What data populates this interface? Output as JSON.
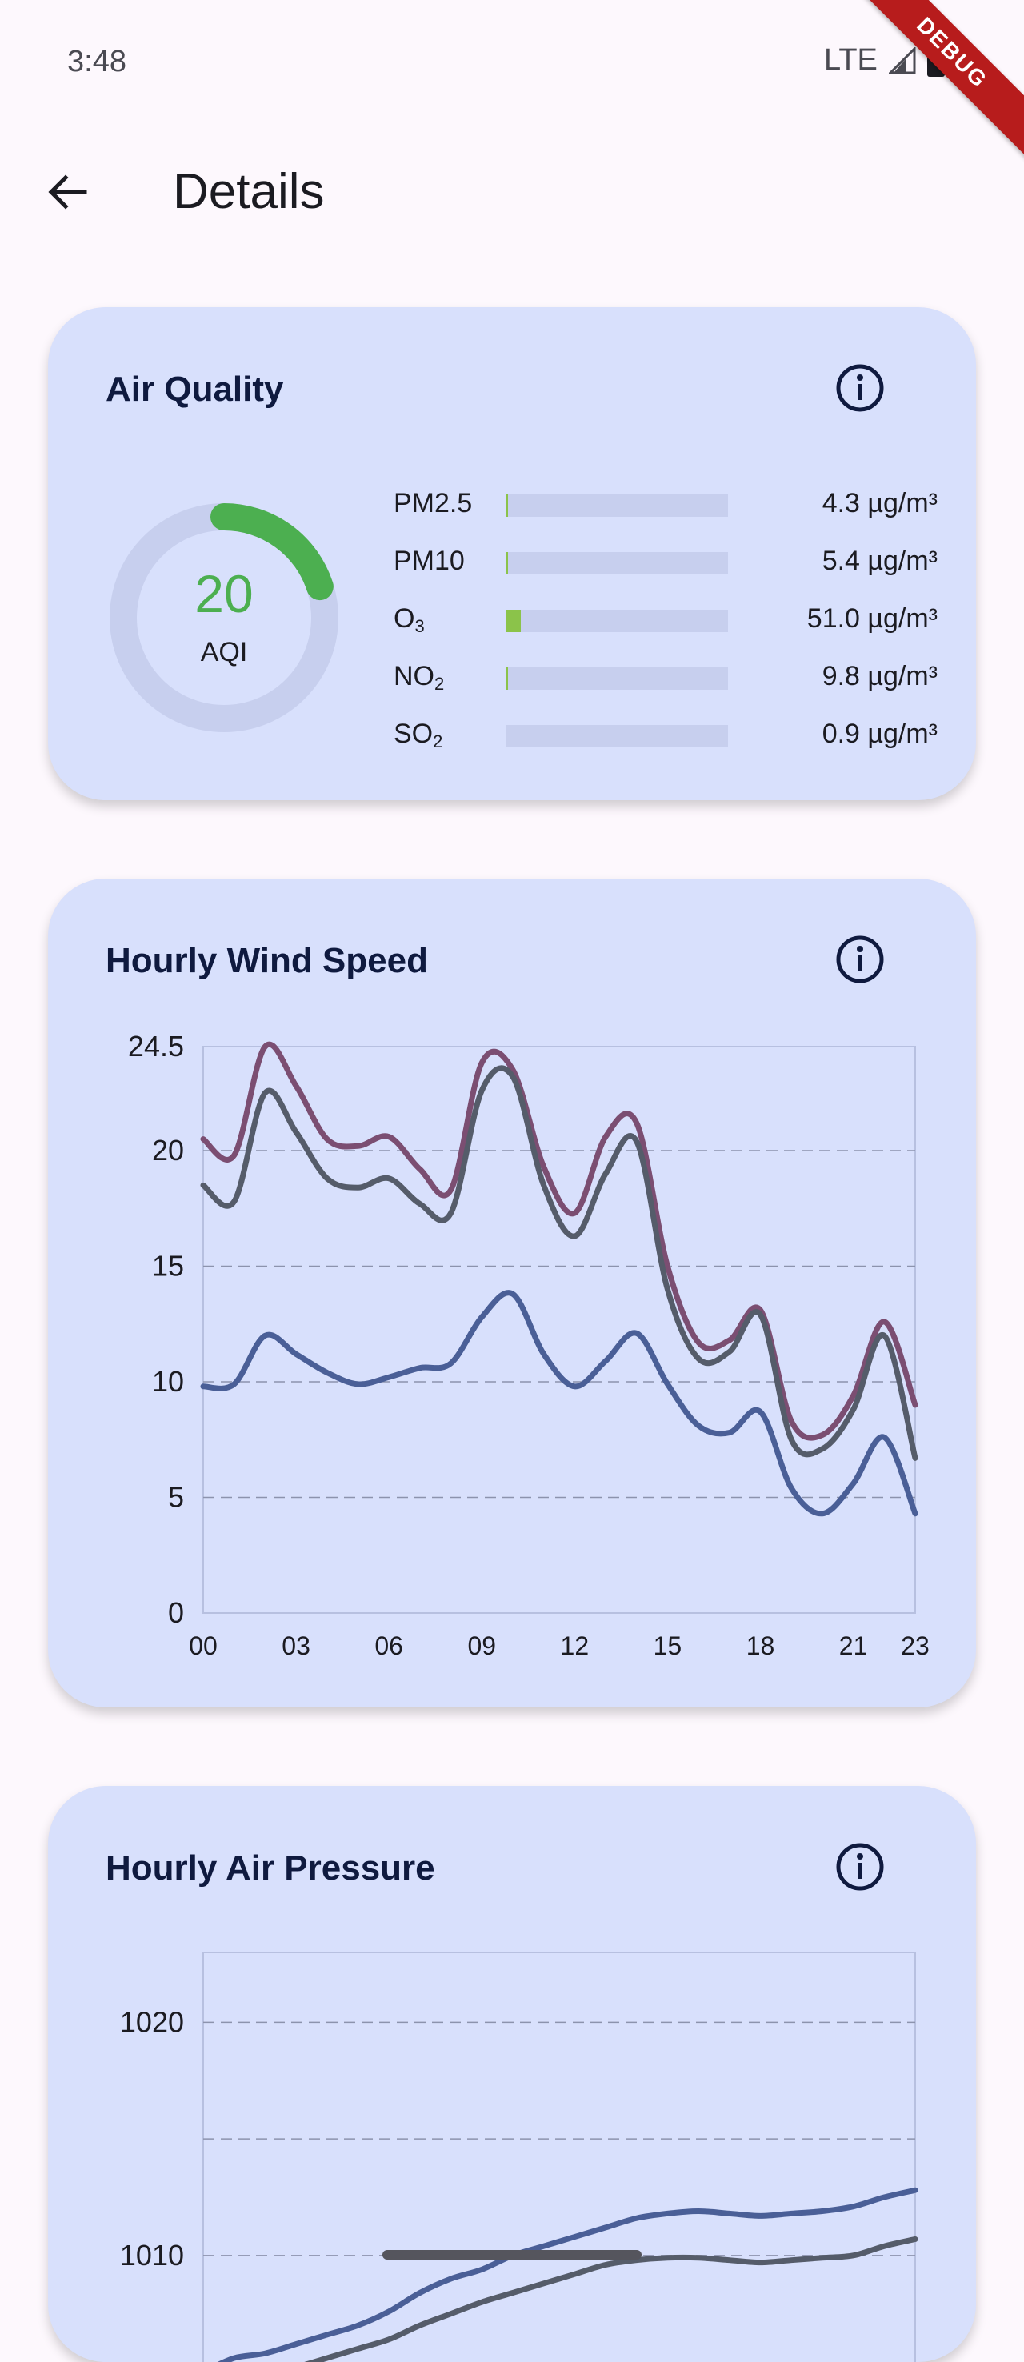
{
  "status_bar": {
    "time": "3:48",
    "network": "LTE",
    "debug_label": "DEBUG"
  },
  "app_bar": {
    "title": "Details",
    "back_icon": "arrow-left-icon"
  },
  "air_quality": {
    "title": "Air Quality",
    "info_icon": "info-icon",
    "aqi_value": "20",
    "aqi_label": "AQI",
    "aqi_fraction": 0.2,
    "gauge_color": "#4caf50",
    "pollutants": [
      {
        "name": "PM2.5",
        "sub": "",
        "value": "4.3 µg/m³",
        "fraction": 0.005
      },
      {
        "name": "PM10",
        "sub": "",
        "value": "5.4 µg/m³",
        "fraction": 0.005
      },
      {
        "name": "O",
        "sub": "3",
        "value": "51.0 µg/m³",
        "fraction": 0.07
      },
      {
        "name": "NO",
        "sub": "2",
        "value": "9.8 µg/m³",
        "fraction": 0.005
      },
      {
        "name": "SO",
        "sub": "2",
        "value": "0.9 µg/m³",
        "fraction": 0.0
      }
    ]
  },
  "wind": {
    "title": "Hourly Wind Speed",
    "info_icon": "info-icon"
  },
  "pressure": {
    "title": "Hourly Air Pressure",
    "info_icon": "info-icon"
  },
  "chart_data": [
    {
      "type": "line",
      "title": "Hourly Wind Speed",
      "xlabel": "",
      "ylabel": "",
      "x": [
        "00",
        "01",
        "02",
        "03",
        "04",
        "05",
        "06",
        "07",
        "08",
        "09",
        "10",
        "11",
        "12",
        "13",
        "14",
        "15",
        "16",
        "17",
        "18",
        "19",
        "20",
        "21",
        "22",
        "23"
      ],
      "x_tick_labels": [
        "00",
        "03",
        "06",
        "09",
        "12",
        "15",
        "18",
        "21",
        "23"
      ],
      "y_ticks": [
        "0",
        "5",
        "10",
        "15",
        "20",
        "24.5"
      ],
      "ylim": [
        0,
        24.5
      ],
      "grid": "horizontal dashed",
      "series": [
        {
          "color": "#7b4e72",
          "values": [
            20.5,
            19.8,
            24.5,
            22.8,
            20.5,
            20.2,
            20.6,
            19.2,
            18.3,
            23.8,
            23.5,
            19.3,
            17.3,
            20.6,
            21.2,
            15.0,
            11.7,
            11.8,
            13.1,
            8.3,
            7.7,
            9.4,
            12.6,
            9.0
          ]
        },
        {
          "color": "#555c6a",
          "values": [
            18.5,
            17.8,
            22.5,
            20.8,
            18.8,
            18.4,
            18.8,
            17.7,
            17.3,
            22.6,
            23.2,
            18.5,
            16.3,
            19.0,
            20.4,
            14.0,
            11.0,
            11.3,
            12.9,
            7.5,
            7.1,
            8.8,
            12.0,
            6.7
          ]
        },
        {
          "color": "#4a5f97",
          "values": [
            9.8,
            9.9,
            12.0,
            11.2,
            10.4,
            9.9,
            10.2,
            10.6,
            10.8,
            12.8,
            13.8,
            11.2,
            9.8,
            10.9,
            12.1,
            9.9,
            8.1,
            7.8,
            8.7,
            5.4,
            4.3,
            5.6,
            7.6,
            4.3
          ]
        }
      ]
    },
    {
      "type": "line",
      "title": "Hourly Air Pressure",
      "xlabel": "",
      "ylabel": "",
      "y_ticks": [
        "1010",
        "1020"
      ],
      "ylim": [
        1002,
        1023
      ],
      "grid": "horizontal dashed",
      "series": [
        {
          "color": "#4a5f97",
          "values": [
            1005.0,
            1005.6,
            1005.8,
            1006.2,
            1006.6,
            1007.0,
            1007.6,
            1008.4,
            1009.0,
            1009.4,
            1010.0,
            1010.4,
            1010.8,
            1011.2,
            1011.6,
            1011.8,
            1011.9,
            1011.8,
            1011.7,
            1011.8,
            1011.9,
            1012.1,
            1012.5,
            1012.8
          ]
        },
        {
          "color": "#555c6a",
          "values": [
            1004.0,
            1004.4,
            1004.8,
            1005.2,
            1005.6,
            1006.0,
            1006.4,
            1007.0,
            1007.5,
            1008.0,
            1008.4,
            1008.8,
            1009.2,
            1009.6,
            1009.8,
            1009.9,
            1009.9,
            1009.8,
            1009.7,
            1009.8,
            1009.9,
            1010.0,
            1010.4,
            1010.7
          ]
        }
      ]
    }
  ]
}
